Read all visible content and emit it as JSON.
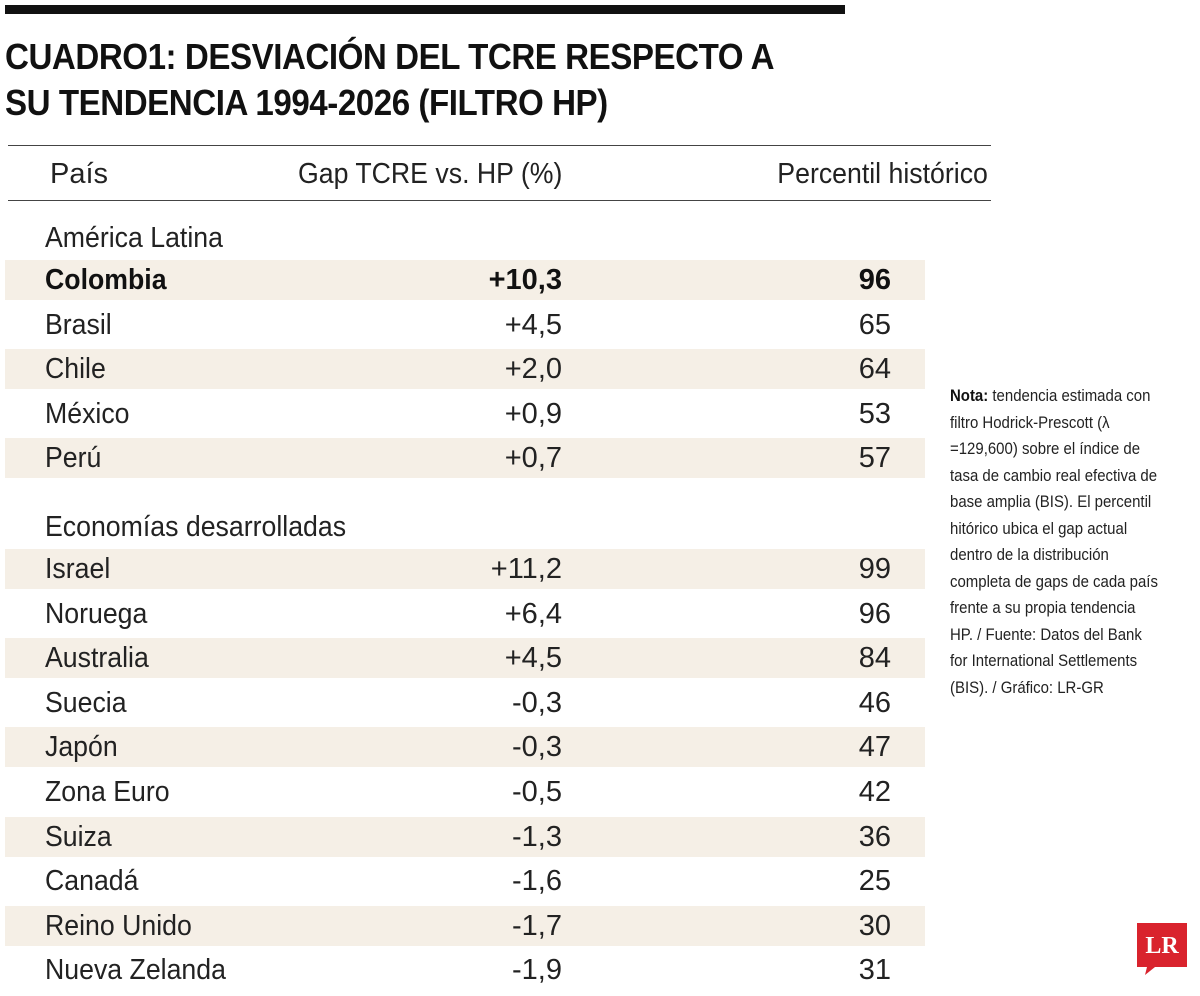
{
  "title": "CUADRO1: DESVIACIÓN DEL TCRE RESPECTO A SU TENDENCIA 1994-2026 (FILTRO HP)",
  "headers": {
    "country": "País",
    "gap": "Gap TCRE vs. HP (%)",
    "percentile": "Percentil histórico"
  },
  "groups": [
    {
      "label": "América Latina",
      "rows": [
        {
          "country": "Colombia",
          "gap": "+10,3",
          "percentile": "96"
        },
        {
          "country": "Brasil",
          "gap": "+4,5",
          "percentile": "65"
        },
        {
          "country": "Chile",
          "gap": "+2,0",
          "percentile": "64"
        },
        {
          "country": "México",
          "gap": "+0,9",
          "percentile": "53"
        },
        {
          "country": "Perú",
          "gap": "+0,7",
          "percentile": "57"
        }
      ]
    },
    {
      "label": "Economías desarrolladas",
      "rows": [
        {
          "country": "Israel",
          "gap": "+11,2",
          "percentile": "99"
        },
        {
          "country": "Noruega",
          "gap": "+6,4",
          "percentile": "96"
        },
        {
          "country": "Australia",
          "gap": "+4,5",
          "percentile": "84"
        },
        {
          "country": "Suecia",
          "gap": "-0,3",
          "percentile": "46"
        },
        {
          "country": "Japón",
          "gap": "-0,3",
          "percentile": "47"
        },
        {
          "country": "Zona Euro",
          "gap": "-0,5",
          "percentile": "42"
        },
        {
          "country": "Suiza",
          "gap": "-1,3",
          "percentile": "36"
        },
        {
          "country": "Canadá",
          "gap": "-1,6",
          "percentile": "25"
        },
        {
          "country": "Reino Unido",
          "gap": "-1,7",
          "percentile": "30"
        },
        {
          "country": "Nueva Zelanda",
          "gap": "-1,9",
          "percentile": "31"
        }
      ]
    }
  ],
  "note": {
    "label": "Nota:",
    "text": "tendencia estimada con filtro Hodrick-Prescott (λ =129,600) sobre el índice de tasa de cambio real efectiva de base amplia (BIS). El percentil hitórico ubica el gap actual dentro de la distribución completa de gaps de cada país frente a su propia tendencia HP. / Fuente: Datos del Bank for International Settlements (BIS). / Gráfico: LR-GR"
  },
  "logo": {
    "text": "LR",
    "color": "#d9232d"
  },
  "colors": {
    "row_shade": "#f5efe6",
    "rule": "#444444",
    "top_bar": "#111111"
  },
  "chart_data": {
    "type": "table",
    "title": "CUADRO1: DESVIACIÓN DEL TCRE RESPECTO A SU TENDENCIA 1994-2026 (FILTRO HP)",
    "columns": [
      "País",
      "Gap TCRE vs. HP (%)",
      "Percentil histórico"
    ],
    "highlighted_row": "Colombia",
    "rows": [
      [
        "Colombia",
        "+10,3",
        "96"
      ],
      [
        "Brasil",
        "+4,5",
        "65"
      ],
      [
        "Chile",
        "+2,0",
        "64"
      ],
      [
        "México",
        "+0,9",
        "53"
      ],
      [
        "Perú",
        "+0,7",
        "57"
      ],
      [
        "Israel",
        "+11,2",
        "99"
      ],
      [
        "Noruega",
        "+6,4",
        "96"
      ],
      [
        "Australia",
        "+4,5",
        "84"
      ],
      [
        "Suecia",
        "-0,3",
        "46"
      ],
      [
        "Japón",
        "-0,3",
        "47"
      ],
      [
        "Zona Euro",
        "-0,5",
        "42"
      ],
      [
        "Suiza",
        "-1,3",
        "36"
      ],
      [
        "Canadá",
        "-1,6",
        "25"
      ],
      [
        "Reino Unido",
        "-1,7",
        "30"
      ],
      [
        "Nueva Zelanda",
        "-1,9",
        "31"
      ]
    ]
  }
}
